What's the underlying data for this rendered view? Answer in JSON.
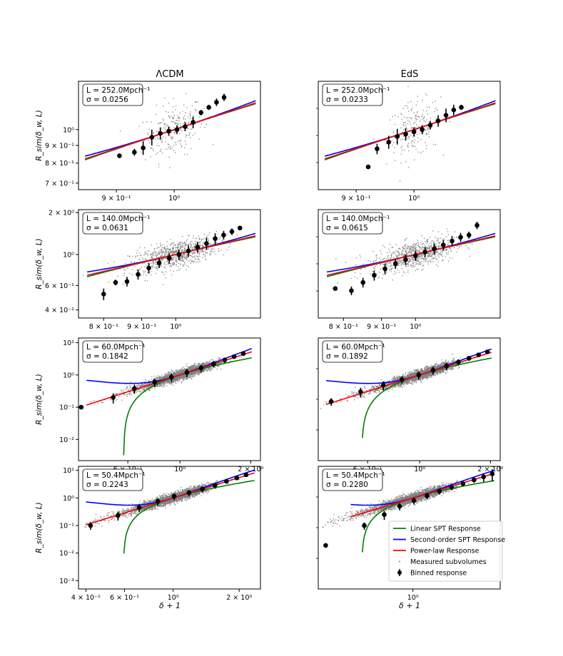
{
  "figure": {
    "column_titles": [
      "ΛCDM",
      "EdS"
    ],
    "ylabel": "R_sim(δ_w, L)",
    "xlabel": "δ + 1"
  },
  "legend": {
    "entries": [
      {
        "label": "Linear SPT Response",
        "color": "#008000",
        "kind": "line"
      },
      {
        "label": "Second-order SPT Response",
        "color": "#0000ff",
        "kind": "line"
      },
      {
        "label": "Power-law Response",
        "color": "#ff0000",
        "kind": "line"
      },
      {
        "label": "Measured subvolumes",
        "color": "#808080",
        "kind": "dot"
      },
      {
        "label": "Binned response",
        "color": "#000000",
        "kind": "errorbar"
      }
    ]
  },
  "colors": {
    "linear": "#008000",
    "second": "#0000ff",
    "powerlaw": "#ff0000",
    "scatter": "#808080",
    "binned": "#000000"
  },
  "chart_data": [
    {
      "type": "scatter",
      "column": "ΛCDM",
      "L_label": "L = 252.0Mpch⁻¹",
      "sigma_label": "σ = 0.0256",
      "xlim": [
        0.84,
        1.17
      ],
      "ylim": [
        0.67,
        1.38
      ],
      "xscale": "log",
      "yscale": "log",
      "xticks": [
        {
          "v": 0.9,
          "label": "9 × 10⁻¹"
        },
        {
          "v": 1.0,
          "label": "10⁰"
        }
      ],
      "yticks": [
        {
          "v": 0.7,
          "label": "7 × 10⁻¹"
        },
        {
          "v": 0.8,
          "label": "8 × 10⁻¹"
        },
        {
          "v": 0.9,
          "label": "9 × 10⁻¹"
        },
        {
          "v": 1.0,
          "label": "10⁰"
        }
      ],
      "sigma": 0.0256,
      "pl_exp": 1.2,
      "curve_x": [
        0.85,
        1.16
      ],
      "scatter_n": 220,
      "clip_linear": false,
      "binned": [
        {
          "x": 0.905,
          "y": 0.84,
          "e": 0.01
        },
        {
          "x": 0.93,
          "y": 0.86,
          "e": 0.02
        },
        {
          "x": 0.945,
          "y": 0.885,
          "e": 0.04
        },
        {
          "x": 0.96,
          "y": 0.95,
          "e": 0.05
        },
        {
          "x": 0.975,
          "y": 0.975,
          "e": 0.04
        },
        {
          "x": 0.99,
          "y": 0.99,
          "e": 0.03
        },
        {
          "x": 1.005,
          "y": 1.0,
          "e": 0.03
        },
        {
          "x": 1.02,
          "y": 1.02,
          "e": 0.03
        },
        {
          "x": 1.035,
          "y": 1.05,
          "e": 0.04
        },
        {
          "x": 1.05,
          "y": 1.12,
          "e": 0.02
        },
        {
          "x": 1.065,
          "y": 1.16,
          "e": 0.02
        },
        {
          "x": 1.08,
          "y": 1.2,
          "e": 0.03
        },
        {
          "x": 1.095,
          "y": 1.24,
          "e": 0.03
        }
      ]
    },
    {
      "type": "scatter",
      "column": "EdS",
      "L_label": "L = 252.0Mpch⁻¹",
      "sigma_label": "σ = 0.0233",
      "xlim": [
        0.84,
        1.17
      ],
      "ylim": [
        0.67,
        1.38
      ],
      "xscale": "log",
      "yscale": "log",
      "xticks": [
        {
          "v": 0.9,
          "label": "9 × 10⁻¹"
        },
        {
          "v": 1.0,
          "label": "10⁰"
        }
      ],
      "yticks": [],
      "sigma": 0.0233,
      "pl_exp": 1.2,
      "curve_x": [
        0.85,
        1.16
      ],
      "scatter_n": 200,
      "clip_linear": false,
      "binned": [
        {
          "x": 0.92,
          "y": 0.78,
          "e": 0.005
        },
        {
          "x": 0.935,
          "y": 0.88,
          "e": 0.03
        },
        {
          "x": 0.955,
          "y": 0.92,
          "e": 0.04
        },
        {
          "x": 0.97,
          "y": 0.955,
          "e": 0.05
        },
        {
          "x": 0.985,
          "y": 0.97,
          "e": 0.04
        },
        {
          "x": 1.0,
          "y": 0.985,
          "e": 0.03
        },
        {
          "x": 1.015,
          "y": 1.0,
          "e": 0.03
        },
        {
          "x": 1.03,
          "y": 1.03,
          "e": 0.03
        },
        {
          "x": 1.045,
          "y": 1.06,
          "e": 0.04
        },
        {
          "x": 1.06,
          "y": 1.1,
          "e": 0.05
        },
        {
          "x": 1.075,
          "y": 1.14,
          "e": 0.04
        },
        {
          "x": 1.09,
          "y": 1.16,
          "e": 0.02
        }
      ]
    },
    {
      "type": "scatter",
      "column": "ΛCDM",
      "L_label": "L = 140.0Mpch⁻¹",
      "sigma_label": "σ = 0.0631",
      "xlim": [
        0.74,
        1.3
      ],
      "ylim": [
        0.35,
        2.1
      ],
      "xscale": "log",
      "yscale": "log",
      "xticks": [
        {
          "v": 0.8,
          "label": "8 × 10⁻¹"
        },
        {
          "v": 0.9,
          "label": "9 × 10⁻¹"
        },
        {
          "v": 1.0,
          "label": "10⁰"
        }
      ],
      "yticks": [
        {
          "v": 0.4,
          "label": "4 × 10⁻¹"
        },
        {
          "v": 0.6,
          "label": "6 × 10⁻¹"
        },
        {
          "v": 1.0,
          "label": "10⁰"
        },
        {
          "v": 2.0,
          "label": "2 × 10⁰"
        }
      ],
      "sigma": 0.0631,
      "pl_exp": 1.25,
      "curve_x": [
        0.76,
        1.28
      ],
      "scatter_n": 800,
      "clip_linear": false,
      "binned": [
        {
          "x": 0.8,
          "y": 0.52,
          "e": 0.05
        },
        {
          "x": 0.83,
          "y": 0.63,
          "e": 0.03
        },
        {
          "x": 0.86,
          "y": 0.64,
          "e": 0.05
        },
        {
          "x": 0.89,
          "y": 0.72,
          "e": 0.06
        },
        {
          "x": 0.92,
          "y": 0.8,
          "e": 0.07
        },
        {
          "x": 0.95,
          "y": 0.87,
          "e": 0.07
        },
        {
          "x": 0.98,
          "y": 0.94,
          "e": 0.08
        },
        {
          "x": 1.01,
          "y": 1.0,
          "e": 0.09
        },
        {
          "x": 1.04,
          "y": 1.06,
          "e": 0.1
        },
        {
          "x": 1.07,
          "y": 1.13,
          "e": 0.1
        },
        {
          "x": 1.1,
          "y": 1.2,
          "e": 0.12
        },
        {
          "x": 1.13,
          "y": 1.3,
          "e": 0.12
        },
        {
          "x": 1.16,
          "y": 1.38,
          "e": 0.1
        },
        {
          "x": 1.19,
          "y": 1.46,
          "e": 0.08
        },
        {
          "x": 1.22,
          "y": 1.55,
          "e": 0.05
        }
      ]
    },
    {
      "type": "scatter",
      "column": "EdS",
      "L_label": "L = 140.0Mpch⁻¹",
      "sigma_label": "σ = 0.0615",
      "xlim": [
        0.74,
        1.3
      ],
      "ylim": [
        0.35,
        2.1
      ],
      "xscale": "log",
      "yscale": "log",
      "xticks": [
        {
          "v": 0.8,
          "label": "8 × 10⁻¹"
        },
        {
          "v": 0.9,
          "label": "9 × 10⁻¹"
        },
        {
          "v": 1.0,
          "label": "10⁰"
        }
      ],
      "yticks": [],
      "sigma": 0.0615,
      "pl_exp": 1.25,
      "curve_x": [
        0.76,
        1.28
      ],
      "scatter_n": 800,
      "clip_linear": false,
      "binned": [
        {
          "x": 0.78,
          "y": 0.57,
          "e": 0.01
        },
        {
          "x": 0.82,
          "y": 0.55,
          "e": 0.04
        },
        {
          "x": 0.85,
          "y": 0.63,
          "e": 0.05
        },
        {
          "x": 0.88,
          "y": 0.71,
          "e": 0.06
        },
        {
          "x": 0.91,
          "y": 0.79,
          "e": 0.07
        },
        {
          "x": 0.94,
          "y": 0.86,
          "e": 0.07
        },
        {
          "x": 0.97,
          "y": 0.92,
          "e": 0.08
        },
        {
          "x": 1.0,
          "y": 0.98,
          "e": 0.08
        },
        {
          "x": 1.03,
          "y": 1.04,
          "e": 0.09
        },
        {
          "x": 1.06,
          "y": 1.1,
          "e": 0.1
        },
        {
          "x": 1.09,
          "y": 1.17,
          "e": 0.1
        },
        {
          "x": 1.12,
          "y": 1.25,
          "e": 0.1
        },
        {
          "x": 1.15,
          "y": 1.33,
          "e": 0.1
        },
        {
          "x": 1.18,
          "y": 1.38,
          "e": 0.08
        },
        {
          "x": 1.21,
          "y": 1.62,
          "e": 0.1
        }
      ]
    },
    {
      "type": "scatter",
      "column": "ΛCDM",
      "L_label": "L = 60.0Mpch⁻¹",
      "sigma_label": "σ = 0.1842",
      "xlim": [
        0.37,
        2.2
      ],
      "ylim": [
        0.0022,
        14
      ],
      "xscale": "log",
      "yscale": "log",
      "xticks": [
        {
          "v": 0.6,
          "label": "6 × 10⁻¹"
        },
        {
          "v": 1.0,
          "label": "10⁰"
        },
        {
          "v": 2.0,
          "label": "2 × 10⁰"
        }
      ],
      "yticks": [
        {
          "v": 0.01,
          "label": "10⁻²"
        },
        {
          "v": 0.1,
          "label": "10⁻¹"
        },
        {
          "v": 1.0,
          "label": "10⁰"
        },
        {
          "v": 10,
          "label": "10¹"
        }
      ],
      "sigma": 0.1842,
      "pl_exp": 2.35,
      "curve_x": [
        0.4,
        2.02
      ],
      "scatter_n": 2600,
      "clip_linear": true,
      "binned": [
        {
          "x": 0.38,
          "y": 0.1,
          "e": 0.0
        },
        {
          "x": 0.52,
          "y": 0.2,
          "e": 0.07
        },
        {
          "x": 0.64,
          "y": 0.38,
          "e": 0.12
        },
        {
          "x": 0.78,
          "y": 0.6,
          "e": 0.18
        },
        {
          "x": 0.92,
          "y": 0.85,
          "e": 0.25
        },
        {
          "x": 1.07,
          "y": 1.2,
          "e": 0.35
        },
        {
          "x": 1.23,
          "y": 1.65,
          "e": 0.45
        },
        {
          "x": 1.39,
          "y": 2.2,
          "e": 0.5
        },
        {
          "x": 1.55,
          "y": 2.9,
          "e": 0.55
        },
        {
          "x": 1.7,
          "y": 3.7,
          "e": 0.5
        },
        {
          "x": 1.86,
          "y": 4.6,
          "e": 0.4
        }
      ]
    },
    {
      "type": "scatter",
      "column": "EdS",
      "L_label": "L = 60.0Mpch⁻¹",
      "sigma_label": "σ = 0.1892",
      "xlim": [
        0.37,
        2.2
      ],
      "ylim": [
        0.0022,
        14
      ],
      "xscale": "log",
      "yscale": "log",
      "xticks": [
        {
          "v": 0.6,
          "label": "6 × 10⁻¹"
        },
        {
          "v": 1.0,
          "label": "10⁰"
        },
        {
          "v": 2.0,
          "label": "2 × 10⁰"
        }
      ],
      "yticks": [],
      "sigma": 0.1892,
      "pl_exp": 2.3,
      "curve_x": [
        0.4,
        2.02
      ],
      "scatter_n": 2600,
      "clip_linear": true,
      "binned": [
        {
          "x": 0.42,
          "y": 0.15,
          "e": 0.04
        },
        {
          "x": 0.56,
          "y": 0.3,
          "e": 0.1
        },
        {
          "x": 0.7,
          "y": 0.48,
          "e": 0.15
        },
        {
          "x": 0.84,
          "y": 0.72,
          "e": 0.2
        },
        {
          "x": 0.99,
          "y": 1.0,
          "e": 0.3
        },
        {
          "x": 1.14,
          "y": 1.4,
          "e": 0.4
        },
        {
          "x": 1.3,
          "y": 1.9,
          "e": 0.5
        },
        {
          "x": 1.46,
          "y": 2.5,
          "e": 0.55
        },
        {
          "x": 1.62,
          "y": 3.3,
          "e": 0.55
        },
        {
          "x": 1.78,
          "y": 4.2,
          "e": 0.45
        },
        {
          "x": 1.94,
          "y": 5.2,
          "e": 0.35
        }
      ]
    },
    {
      "type": "scatter",
      "column": "ΛCDM",
      "L_label": "L = 50.4Mpch⁻¹",
      "sigma_label": "σ = 0.2243",
      "xlim": [
        0.37,
        2.5
      ],
      "ylim": [
        0.0005,
        14
      ],
      "xscale": "log",
      "yscale": "log",
      "xticks": [
        {
          "v": 0.4,
          "label": "4 × 10⁻¹"
        },
        {
          "v": 0.6,
          "label": "6 × 10⁻¹"
        },
        {
          "v": 1.0,
          "label": "10⁰"
        },
        {
          "v": 2.0,
          "label": "2 × 10⁰"
        }
      ],
      "yticks": [
        {
          "v": 0.001,
          "label": "10⁻³"
        },
        {
          "v": 0.01,
          "label": "10⁻²"
        },
        {
          "v": 0.1,
          "label": "10⁻¹"
        },
        {
          "v": 1.0,
          "label": "10⁰"
        },
        {
          "v": 10,
          "label": "10¹"
        }
      ],
      "sigma": 0.2243,
      "pl_exp": 2.45,
      "curve_x": [
        0.4,
        2.35
      ],
      "scatter_n": 2600,
      "clip_linear": true,
      "binned": [
        {
          "x": 0.42,
          "y": 0.1,
          "e": 0.03
        },
        {
          "x": 0.56,
          "y": 0.23,
          "e": 0.08
        },
        {
          "x": 0.7,
          "y": 0.45,
          "e": 0.14
        },
        {
          "x": 0.85,
          "y": 0.75,
          "e": 0.22
        },
        {
          "x": 1.01,
          "y": 1.15,
          "e": 0.32
        },
        {
          "x": 1.18,
          "y": 1.55,
          "e": 0.42
        },
        {
          "x": 1.36,
          "y": 2.1,
          "e": 0.5
        },
        {
          "x": 1.55,
          "y": 2.9,
          "e": 0.55
        },
        {
          "x": 1.75,
          "y": 4.0,
          "e": 0.55
        },
        {
          "x": 1.95,
          "y": 5.3,
          "e": 0.5
        },
        {
          "x": 2.15,
          "y": 6.9,
          "e": 0.4
        }
      ]
    },
    {
      "type": "scatter",
      "column": "EdS",
      "L_label": "L = 50.4Mpch⁻¹",
      "sigma_label": "σ = 0.2280",
      "xlim": [
        0.37,
        2.5
      ],
      "ylim": [
        0.0005,
        14
      ],
      "xscale": "log",
      "yscale": "log",
      "xticks": [
        {
          "v": 1.0,
          "label": "10⁰"
        }
      ],
      "yticks": [],
      "sigma": 0.228,
      "pl_exp": 2.4,
      "curve_x": [
        0.52,
        2.35
      ],
      "scatter_n": 2600,
      "clip_linear": true,
      "binned": [
        {
          "x": 0.4,
          "y": 0.019,
          "e": 0.0
        },
        {
          "x": 0.6,
          "y": 0.1,
          "e": 0.03
        },
        {
          "x": 0.74,
          "y": 0.25,
          "e": 0.09
        },
        {
          "x": 0.87,
          "y": 0.5,
          "e": 0.15
        },
        {
          "x": 1.01,
          "y": 0.8,
          "e": 0.22
        },
        {
          "x": 1.16,
          "y": 1.2,
          "e": 0.3
        },
        {
          "x": 1.32,
          "y": 1.75,
          "e": 0.4
        },
        {
          "x": 1.5,
          "y": 2.4,
          "e": 0.5
        },
        {
          "x": 1.69,
          "y": 3.3,
          "e": 0.6
        },
        {
          "x": 1.9,
          "y": 4.5,
          "e": 1.0
        },
        {
          "x": 2.1,
          "y": 5.8,
          "e": 2.0
        },
        {
          "x": 2.3,
          "y": 7.5,
          "e": 3.5
        }
      ]
    }
  ]
}
